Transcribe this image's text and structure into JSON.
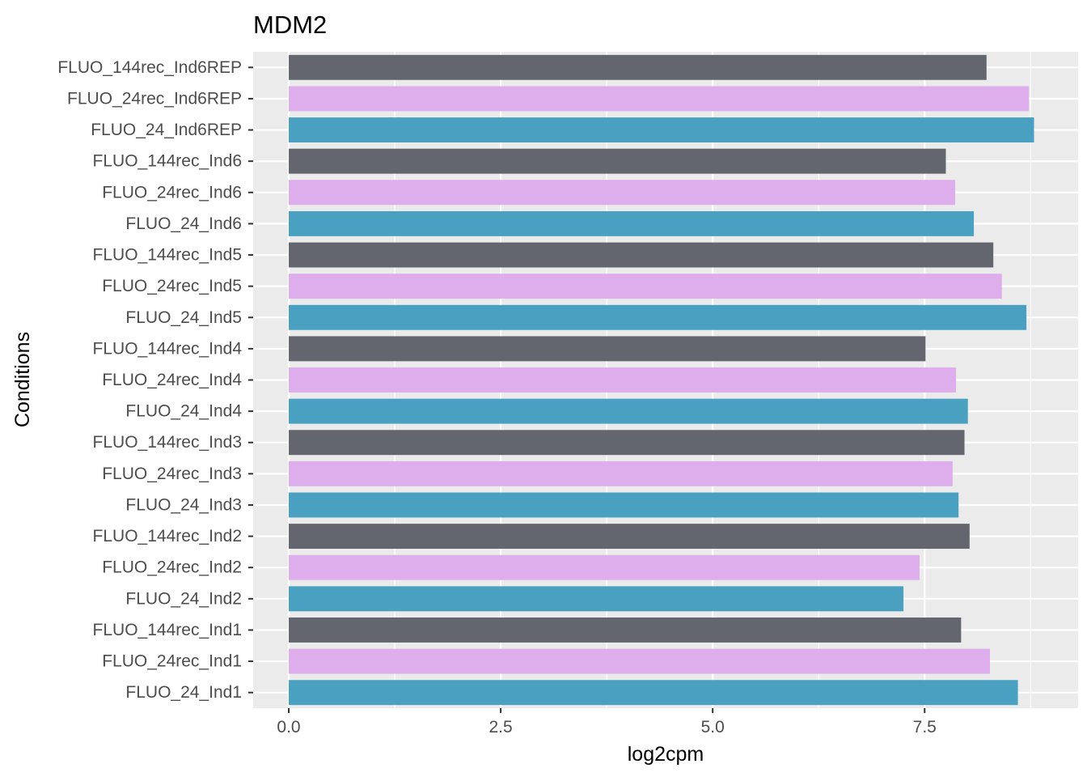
{
  "chart_data": {
    "type": "bar",
    "orientation": "horizontal",
    "title": "MDM2",
    "xlabel": "log2cpm",
    "ylabel": "Conditions",
    "xlim": [
      -0.42,
      9.31
    ],
    "x_ticks": [
      0.0,
      2.5,
      5.0,
      7.5
    ],
    "x_tick_labels": [
      "0.0",
      "2.5",
      "5.0",
      "7.5"
    ],
    "grid": true,
    "legend": "none",
    "categories": [
      "FLUO_144rec_Ind6REP",
      "FLUO_24rec_Ind6REP",
      "FLUO_24_Ind6REP",
      "FLUO_144rec_Ind6",
      "FLUO_24rec_Ind6",
      "FLUO_24_Ind6",
      "FLUO_144rec_Ind5",
      "FLUO_24rec_Ind5",
      "FLUO_24_Ind5",
      "FLUO_144rec_Ind4",
      "FLUO_24rec_Ind4",
      "FLUO_24_Ind4",
      "FLUO_144rec_Ind3",
      "FLUO_24rec_Ind3",
      "FLUO_24_Ind3",
      "FLUO_144rec_Ind2",
      "FLUO_24rec_Ind2",
      "FLUO_24_Ind2",
      "FLUO_144rec_Ind1",
      "FLUO_24rec_Ind1",
      "FLUO_24_Ind1"
    ],
    "values": [
      8.23,
      8.73,
      8.79,
      7.75,
      7.86,
      8.08,
      8.31,
      8.41,
      8.7,
      7.51,
      7.87,
      8.01,
      7.97,
      7.83,
      7.9,
      8.03,
      7.44,
      7.25,
      7.93,
      8.27,
      8.6
    ],
    "bar_colors": [
      "#63666E",
      "#DDADEC",
      "#4AA0C0",
      "#63666E",
      "#DDADEC",
      "#4AA0C0",
      "#63666E",
      "#DDADEC",
      "#4AA0C0",
      "#63666E",
      "#DDADEC",
      "#4AA0C0",
      "#63666E",
      "#DDADEC",
      "#4AA0C0",
      "#63666E",
      "#DDADEC",
      "#4AA0C0",
      "#63666E",
      "#DDADEC",
      "#4AA0C0"
    ],
    "panel_background": "#EBEBEB",
    "grid_color": "#FFFFFF"
  }
}
